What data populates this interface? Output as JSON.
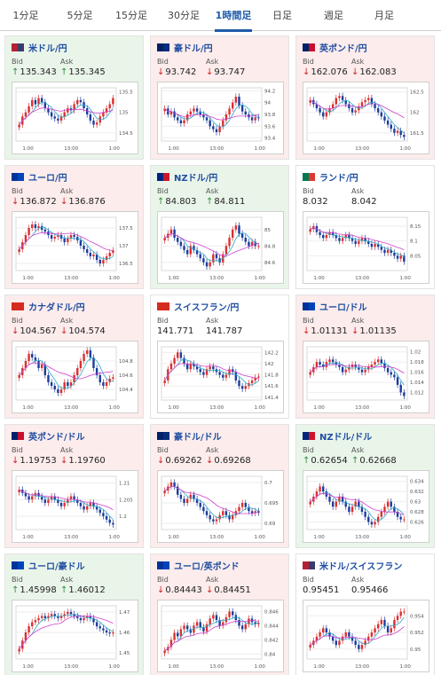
{
  "tabs": [
    {
      "label": "1分足",
      "active": false
    },
    {
      "label": "5分足",
      "active": false
    },
    {
      "label": "15分足",
      "active": false
    },
    {
      "label": "30分足",
      "active": false
    },
    {
      "label": "1時間足",
      "active": true
    },
    {
      "label": "日足",
      "active": false
    },
    {
      "label": "週足",
      "active": false
    },
    {
      "label": "月足",
      "active": false
    }
  ],
  "labels": {
    "bid": "Bid",
    "ask": "Ask"
  },
  "colors": {
    "candle_up": "#d93030",
    "candle_down": "#1c3c9c",
    "ma_fast": "#2aa9c9",
    "ma_slow": "#d040d0",
    "up_arrow": "#2e8b3a",
    "down_arrow": "#d02020"
  },
  "cards": [
    {
      "pair": "米ドル/円",
      "flag_icon": "us-flag-icon",
      "flag": [
        "#b22234",
        "#3c3b6e"
      ],
      "trend": "up",
      "bid": "135.343",
      "ask": "135.345",
      "dir": "up",
      "chart_data": {
        "type": "candlestick",
        "x_ticks": [
          "1:00",
          "13:00",
          "1:00"
        ],
        "y_ticks": [
          "135.5",
          "135",
          "134.5"
        ],
        "ylim": [
          134.3,
          135.6
        ],
        "closes": [
          134.7,
          134.9,
          135.0,
          135.15,
          135.3,
          135.2,
          135.35,
          135.25,
          135.1,
          135.0,
          134.9,
          134.85,
          134.8,
          134.9,
          135.0,
          135.1,
          135.05,
          135.2,
          135.3,
          135.25,
          135.1,
          134.95,
          134.8,
          134.7,
          134.75,
          134.9,
          135.0,
          135.1,
          135.2,
          135.35
        ]
      }
    },
    {
      "pair": "豪ドル/円",
      "flag_icon": "au-flag-icon",
      "flag": [
        "#012169",
        "#0a2d7a"
      ],
      "trend": "down",
      "bid": "93.742",
      "ask": "93.747",
      "dir": "down",
      "chart_data": {
        "type": "candlestick",
        "x_ticks": [
          "1:00",
          "13:00",
          "1:00"
        ],
        "y_ticks": [
          "94.2",
          "94",
          "93.8",
          "93.6",
          "93.4"
        ],
        "ylim": [
          93.35,
          94.25
        ],
        "closes": [
          93.9,
          93.8,
          93.85,
          93.75,
          93.7,
          93.65,
          93.7,
          93.8,
          93.85,
          93.9,
          93.85,
          93.8,
          93.75,
          93.7,
          93.6,
          93.55,
          93.5,
          93.6,
          93.7,
          93.8,
          93.9,
          94.0,
          94.1,
          93.95,
          93.85,
          93.8,
          93.75,
          93.7,
          93.75,
          93.74
        ]
      }
    },
    {
      "pair": "英ポンド/円",
      "flag_icon": "uk-flag-icon",
      "flag": [
        "#012169",
        "#c8102e"
      ],
      "trend": "down",
      "bid": "162.076",
      "ask": "162.083",
      "dir": "down",
      "chart_data": {
        "type": "candlestick",
        "x_ticks": [
          "1:00",
          "13:00",
          "1:00"
        ],
        "y_ticks": [
          "162.5",
          "162",
          "161.5"
        ],
        "ylim": [
          161.3,
          162.6
        ],
        "closes": [
          162.3,
          162.2,
          162.1,
          162.0,
          161.9,
          162.0,
          162.1,
          162.2,
          162.35,
          162.4,
          162.3,
          162.2,
          162.1,
          162.0,
          162.05,
          162.15,
          162.25,
          162.3,
          162.35,
          162.2,
          162.1,
          162.0,
          161.9,
          161.8,
          161.7,
          161.6,
          161.5,
          161.55,
          161.45,
          161.4
        ]
      }
    },
    {
      "pair": "ユーロ/円",
      "flag_icon": "eu-flag-icon",
      "flag": [
        "#003399",
        "#0044bb"
      ],
      "trend": "down",
      "bid": "136.872",
      "ask": "136.876",
      "dir": "down",
      "chart_data": {
        "type": "candlestick",
        "x_ticks": [
          "1:00",
          "13:00",
          "1:00"
        ],
        "y_ticks": [
          "137.5",
          "137",
          "136.5"
        ],
        "ylim": [
          136.3,
          137.8
        ],
        "closes": [
          136.9,
          137.1,
          137.3,
          137.5,
          137.6,
          137.5,
          137.55,
          137.45,
          137.4,
          137.3,
          137.2,
          137.25,
          137.3,
          137.2,
          137.1,
          137.2,
          137.3,
          137.25,
          137.15,
          137.0,
          136.9,
          136.8,
          136.7,
          136.75,
          136.6,
          136.5,
          136.6,
          136.7,
          136.8,
          136.87
        ]
      }
    },
    {
      "pair": "NZドル/円",
      "flag_icon": "nz-flag-icon",
      "flag": [
        "#00247d",
        "#cc142b"
      ],
      "trend": "up",
      "bid": "84.803",
      "ask": "84.811",
      "dir": "up",
      "chart_data": {
        "type": "candlestick",
        "x_ticks": [
          "1:00",
          "13:00",
          "1:00"
        ],
        "y_ticks": [
          "85",
          "84.8",
          "84.6"
        ],
        "ylim": [
          84.5,
          85.15
        ],
        "closes": [
          84.9,
          84.95,
          85.0,
          84.9,
          84.85,
          84.8,
          84.75,
          84.7,
          84.8,
          84.75,
          84.7,
          84.65,
          84.6,
          84.55,
          84.6,
          84.7,
          84.65,
          84.6,
          84.7,
          84.8,
          84.9,
          85.0,
          85.05,
          84.95,
          84.9,
          84.85,
          84.8,
          84.85,
          84.8,
          84.8
        ]
      }
    },
    {
      "pair": "ランド/円",
      "flag_icon": "za-flag-icon",
      "flag": [
        "#007a4d",
        "#de3831"
      ],
      "trend": "flat",
      "bid": "8.032",
      "ask": "8.042",
      "dir": "none",
      "chart_data": {
        "type": "candlestick",
        "x_ticks": [
          "1:00",
          "13:00",
          "1:00"
        ],
        "y_ticks": [
          "8.15",
          "8.1",
          "8.05"
        ],
        "ylim": [
          8.0,
          8.18
        ],
        "closes": [
          8.14,
          8.15,
          8.13,
          8.12,
          8.11,
          8.12,
          8.13,
          8.12,
          8.11,
          8.1,
          8.11,
          8.12,
          8.11,
          8.1,
          8.09,
          8.1,
          8.11,
          8.1,
          8.09,
          8.08,
          8.09,
          8.08,
          8.07,
          8.06,
          8.07,
          8.06,
          8.05,
          8.04,
          8.05,
          8.03
        ]
      }
    },
    {
      "pair": "カナダドル/円",
      "flag_icon": "ca-flag-icon",
      "flag": [
        "#d52b1e",
        "#d52b1e"
      ],
      "trend": "down",
      "bid": "104.567",
      "ask": "104.574",
      "dir": "down",
      "chart_data": {
        "type": "candlestick",
        "x_ticks": [
          "1:00",
          "13:00",
          "1:00"
        ],
        "y_ticks": [
          "104.8",
          "104.6",
          "104.4"
        ],
        "ylim": [
          104.25,
          105.0
        ],
        "closes": [
          104.6,
          104.7,
          104.8,
          104.9,
          104.85,
          104.8,
          104.7,
          104.75,
          104.6,
          104.5,
          104.45,
          104.4,
          104.35,
          104.4,
          104.5,
          104.45,
          104.5,
          104.6,
          104.7,
          104.8,
          104.9,
          104.95,
          104.85,
          104.7,
          104.6,
          104.5,
          104.45,
          104.5,
          104.55,
          104.57
        ]
      }
    },
    {
      "pair": "スイスフラン/円",
      "flag_icon": "ch-flag-icon",
      "flag": [
        "#d52b1e",
        "#d52b1e"
      ],
      "trend": "flat",
      "bid": "141.771",
      "ask": "141.787",
      "dir": "none",
      "chart_data": {
        "type": "candlestick",
        "x_ticks": [
          "1:00",
          "13:00",
          "1:00"
        ],
        "y_ticks": [
          "142.2",
          "142",
          "141.8",
          "141.6",
          "141.4"
        ],
        "ylim": [
          141.35,
          142.3
        ],
        "closes": [
          141.7,
          141.9,
          142.0,
          142.1,
          142.2,
          142.1,
          142.0,
          141.9,
          142.0,
          141.95,
          141.9,
          141.85,
          141.8,
          141.9,
          141.95,
          141.9,
          141.85,
          141.8,
          141.75,
          141.8,
          141.9,
          141.85,
          141.7,
          141.6,
          141.55,
          141.6,
          141.65,
          141.7,
          141.75,
          141.77
        ]
      }
    },
    {
      "pair": "ユーロ/ドル",
      "flag_icon": "eu-flag-icon",
      "flag": [
        "#003399",
        "#0044bb"
      ],
      "trend": "down",
      "bid": "1.01131",
      "ask": "1.01135",
      "dir": "down",
      "chart_data": {
        "type": "candlestick",
        "x_ticks": [
          "1:00",
          "13:00",
          "1:00"
        ],
        "y_ticks": [
          "1.02",
          "1.018",
          "1.016",
          "1.014",
          "1.012"
        ],
        "ylim": [
          1.0105,
          1.021
        ],
        "closes": [
          1.016,
          1.017,
          1.018,
          1.0175,
          1.017,
          1.018,
          1.0185,
          1.018,
          1.0175,
          1.017,
          1.016,
          1.0165,
          1.017,
          1.0175,
          1.017,
          1.0165,
          1.016,
          1.0165,
          1.017,
          1.0175,
          1.018,
          1.0185,
          1.0178,
          1.0168,
          1.016,
          1.0155,
          1.015,
          1.0135,
          1.012,
          1.0113
        ]
      }
    },
    {
      "pair": "英ポンド/ドル",
      "flag_icon": "uk-flag-icon",
      "flag": [
        "#012169",
        "#c8102e"
      ],
      "trend": "down",
      "bid": "1.19753",
      "ask": "1.19760",
      "dir": "down",
      "chart_data": {
        "type": "candlestick",
        "x_ticks": [
          "1:00",
          "13:00",
          "1:00"
        ],
        "y_ticks": [
          "1.21",
          "1.205",
          "1.2"
        ],
        "ylim": [
          1.196,
          1.212
        ],
        "closes": [
          1.208,
          1.207,
          1.206,
          1.205,
          1.206,
          1.207,
          1.206,
          1.205,
          1.204,
          1.205,
          1.206,
          1.205,
          1.204,
          1.203,
          1.204,
          1.205,
          1.206,
          1.205,
          1.204,
          1.203,
          1.202,
          1.203,
          1.204,
          1.203,
          1.202,
          1.201,
          1.2,
          1.199,
          1.198,
          1.1975
        ]
      }
    },
    {
      "pair": "豪ドル/ドル",
      "flag_icon": "au-flag-icon",
      "flag": [
        "#012169",
        "#0a2d7a"
      ],
      "trend": "down",
      "bid": "0.69262",
      "ask": "0.69268",
      "dir": "down",
      "chart_data": {
        "type": "candlestick",
        "x_ticks": [
          "1:00",
          "13:00",
          "1:00"
        ],
        "y_ticks": [
          "0.7",
          "0.695",
          "0.69"
        ],
        "ylim": [
          0.6885,
          0.7015
        ],
        "closes": [
          0.698,
          0.699,
          0.7,
          0.699,
          0.697,
          0.696,
          0.695,
          0.696,
          0.697,
          0.696,
          0.695,
          0.694,
          0.693,
          0.692,
          0.691,
          0.6905,
          0.691,
          0.692,
          0.693,
          0.692,
          0.691,
          0.692,
          0.693,
          0.694,
          0.695,
          0.694,
          0.693,
          0.6925,
          0.693,
          0.6926
        ]
      }
    },
    {
      "pair": "NZドル/ドル",
      "flag_icon": "nz-flag-icon",
      "flag": [
        "#00247d",
        "#cc142b"
      ],
      "trend": "up",
      "bid": "0.62654",
      "ask": "0.62668",
      "dir": "up",
      "chart_data": {
        "type": "candlestick",
        "x_ticks": [
          "1:00",
          "13:00",
          "1:00"
        ],
        "y_ticks": [
          "0.634",
          "0.632",
          "0.63",
          "0.628",
          "0.626"
        ],
        "ylim": [
          0.6245,
          0.635
        ],
        "closes": [
          0.63,
          0.631,
          0.632,
          0.633,
          0.632,
          0.631,
          0.63,
          0.629,
          0.63,
          0.631,
          0.63,
          0.629,
          0.628,
          0.629,
          0.63,
          0.629,
          0.628,
          0.627,
          0.626,
          0.6255,
          0.626,
          0.627,
          0.628,
          0.629,
          0.63,
          0.629,
          0.628,
          0.627,
          0.6265,
          0.6265
        ]
      }
    },
    {
      "pair": "ユーロ/豪ドル",
      "flag_icon": "eu-flag-icon",
      "flag": [
        "#003399",
        "#0044bb"
      ],
      "trend": "up",
      "bid": "1.45998",
      "ask": "1.46012",
      "dir": "up",
      "chart_data": {
        "type": "candlestick",
        "x_ticks": [
          "1:00",
          "13:00",
          "1:00"
        ],
        "y_ticks": [
          "1.47",
          "1.46",
          "1.45"
        ],
        "ylim": [
          1.447,
          1.473
        ],
        "closes": [
          1.452,
          1.456,
          1.46,
          1.463,
          1.465,
          1.466,
          1.467,
          1.468,
          1.467,
          1.468,
          1.469,
          1.468,
          1.467,
          1.468,
          1.469,
          1.47,
          1.469,
          1.468,
          1.467,
          1.466,
          1.467,
          1.468,
          1.467,
          1.465,
          1.463,
          1.462,
          1.461,
          1.46,
          1.4595,
          1.46
        ]
      }
    },
    {
      "pair": "ユーロ/英ポンド",
      "flag_icon": "eu-flag-icon",
      "flag": [
        "#003399",
        "#0044bb"
      ],
      "trend": "down",
      "bid": "0.84443",
      "ask": "0.84451",
      "dir": "down",
      "chart_data": {
        "type": "candlestick",
        "x_ticks": [
          "1:00",
          "13:00",
          "1:00"
        ],
        "y_ticks": [
          "0.846",
          "0.844",
          "0.842",
          "0.84"
        ],
        "ylim": [
          0.8393,
          0.8468
        ],
        "closes": [
          0.8405,
          0.841,
          0.842,
          0.843,
          0.8425,
          0.8435,
          0.844,
          0.8435,
          0.843,
          0.844,
          0.8445,
          0.8438,
          0.8432,
          0.8442,
          0.845,
          0.8455,
          0.8448,
          0.844,
          0.8445,
          0.8452,
          0.846,
          0.8455,
          0.8448,
          0.844,
          0.8435,
          0.8442,
          0.845,
          0.8445,
          0.8442,
          0.8444
        ]
      }
    },
    {
      "pair": "米ドル/スイスフラン",
      "flag_icon": "us-flag-icon",
      "flag": [
        "#b22234",
        "#3c3b6e"
      ],
      "trend": "flat",
      "bid": "0.95451",
      "ask": "0.95466",
      "dir": "none",
      "chart_data": {
        "type": "candlestick",
        "x_ticks": [
          "1:00",
          "13:00",
          "1:00"
        ],
        "y_ticks": [
          "0.954",
          "0.952",
          "0.95"
        ],
        "ylim": [
          0.9488,
          0.9552
        ],
        "closes": [
          0.9505,
          0.951,
          0.9515,
          0.952,
          0.9525,
          0.952,
          0.9515,
          0.951,
          0.9505,
          0.951,
          0.9515,
          0.952,
          0.9515,
          0.951,
          0.9505,
          0.95,
          0.9505,
          0.951,
          0.9515,
          0.952,
          0.9525,
          0.953,
          0.9535,
          0.9528,
          0.952,
          0.9525,
          0.9535,
          0.954,
          0.9545,
          0.9545
        ]
      }
    }
  ]
}
